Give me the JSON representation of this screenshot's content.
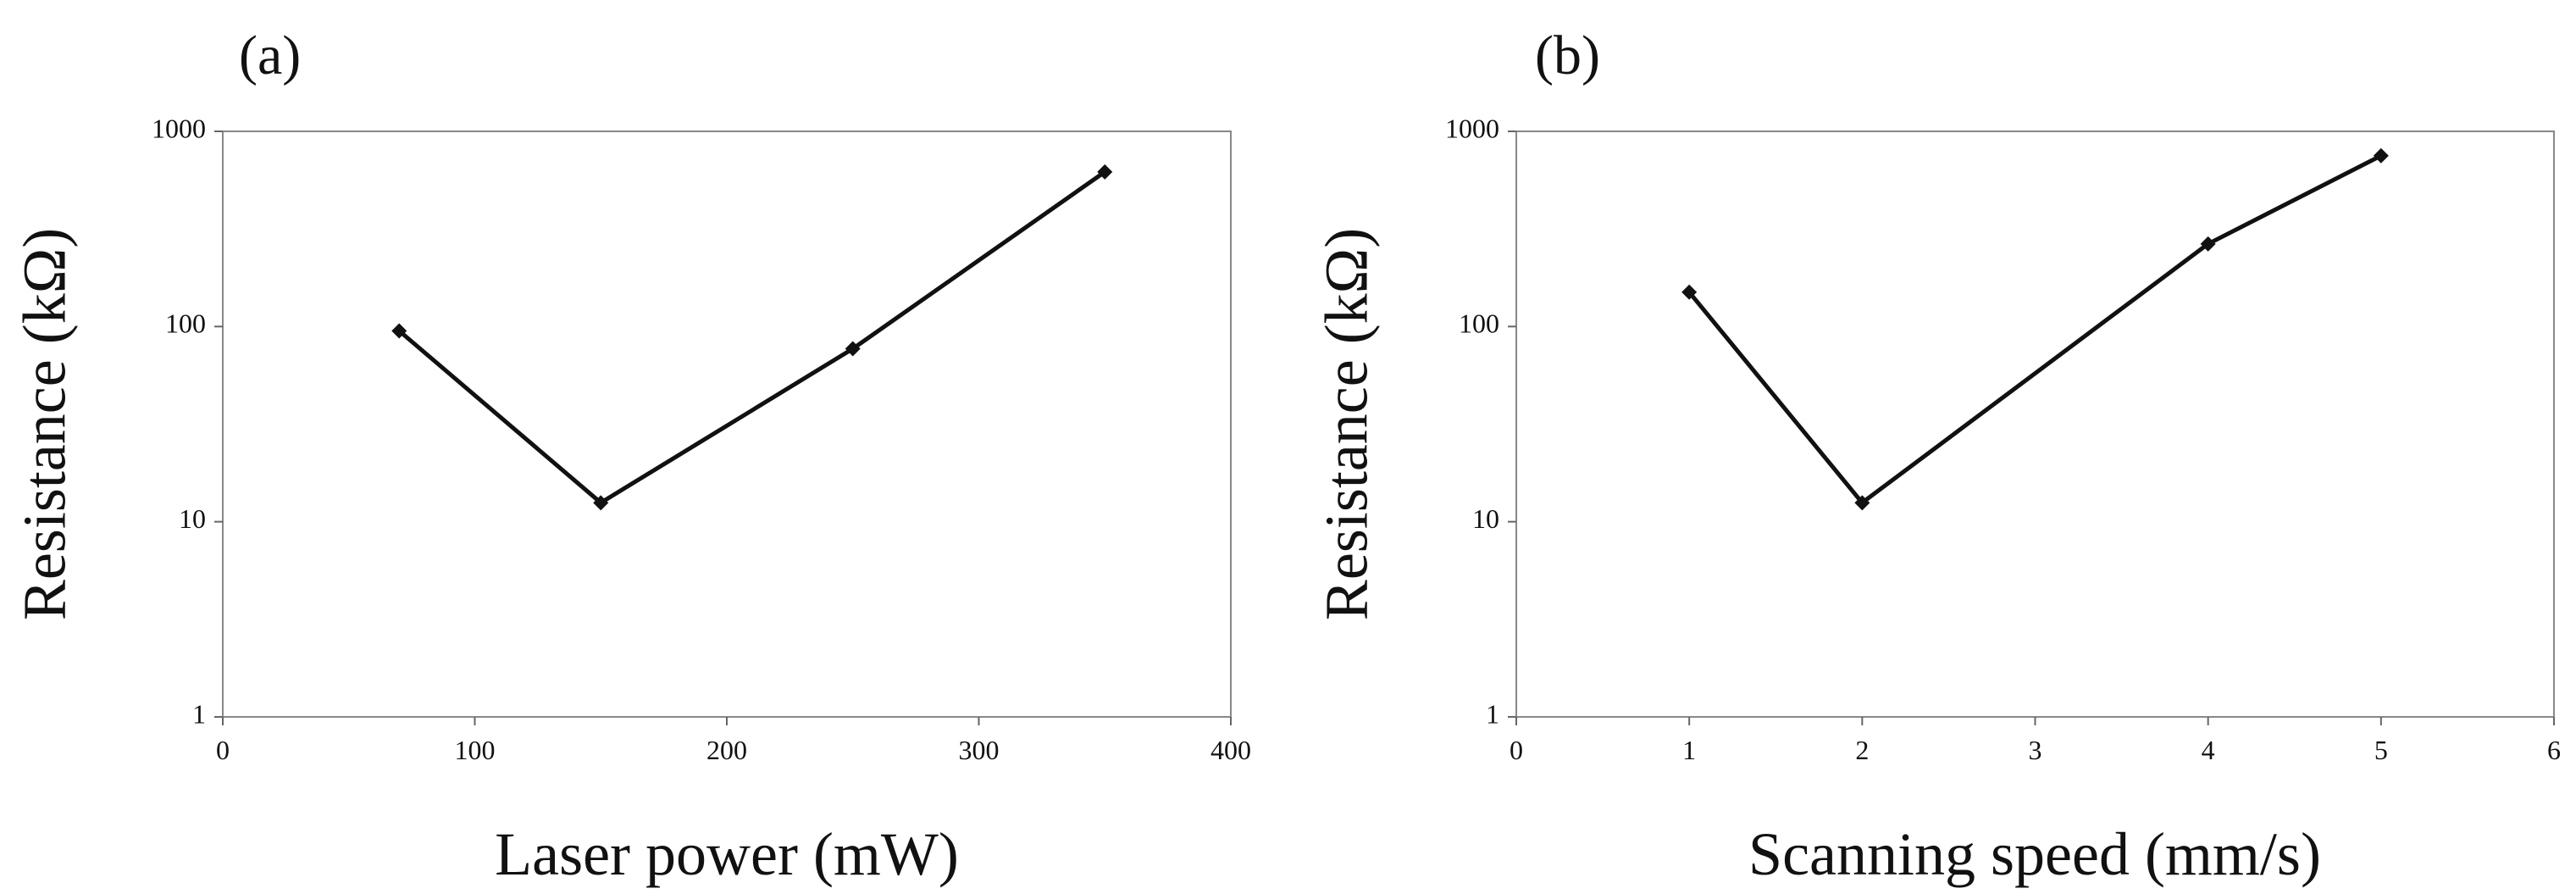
{
  "chart_data": [
    {
      "type": "line",
      "panel_label": "(a)",
      "xlabel": "Laser power (mW)",
      "ylabel": "Resistance (kΩ)",
      "xlim": [
        0,
        400
      ],
      "ylim": [
        1,
        1000
      ],
      "yscale": "log",
      "x_ticks": [
        "0",
        "100",
        "200",
        "300",
        "400"
      ],
      "y_ticks": [
        "1",
        "10",
        "100",
        "1000"
      ],
      "grid": false,
      "x": [
        70,
        150,
        250,
        350
      ],
      "values": [
        95,
        12.5,
        77,
        620
      ]
    },
    {
      "type": "line",
      "panel_label": "(b)",
      "xlabel": "Scanning speed (mm/s)",
      "ylabel": "Resistance (kΩ)",
      "xlim": [
        0,
        6
      ],
      "ylim": [
        1,
        1000
      ],
      "yscale": "log",
      "x_ticks": [
        "0",
        "1",
        "2",
        "3",
        "4",
        "5",
        "6"
      ],
      "y_ticks": [
        "1",
        "10",
        "100",
        "1000"
      ],
      "grid": false,
      "x": [
        1,
        2,
        4,
        5
      ],
      "values": [
        150,
        12.5,
        265,
        750
      ]
    }
  ]
}
